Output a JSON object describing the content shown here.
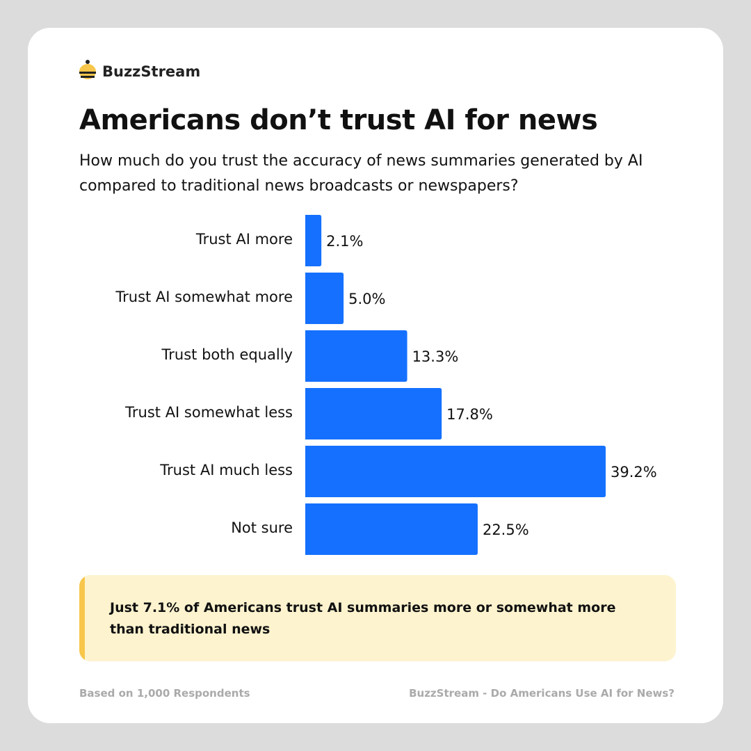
{
  "brand": "BuzzStream",
  "chart_data": {
    "type": "bar",
    "orientation": "horizontal",
    "title": "Americans don’t trust AI for news",
    "subtitle": "How much do you trust the accuracy of news summaries generated by AI compared to traditional news broadcasts or newspapers?",
    "categories": [
      "Trust AI more",
      "Trust AI somewhat more",
      "Trust both equally",
      "Trust AI somewhat less",
      "Trust AI much less",
      "Not sure"
    ],
    "values": [
      2.1,
      5.0,
      13.3,
      17.8,
      39.2,
      22.5
    ],
    "value_labels": [
      "2.1%",
      "5.0%",
      "13.3%",
      "17.8%",
      "39.2%",
      "22.5%"
    ],
    "color": "#1570ff"
  },
  "callout": "Just 7.1% of Americans trust AI summaries more or somewhat more than traditional news",
  "footer": {
    "left": "Based on 1,000 Respondents",
    "right": "BuzzStream - Do Americans Use AI for News?"
  }
}
